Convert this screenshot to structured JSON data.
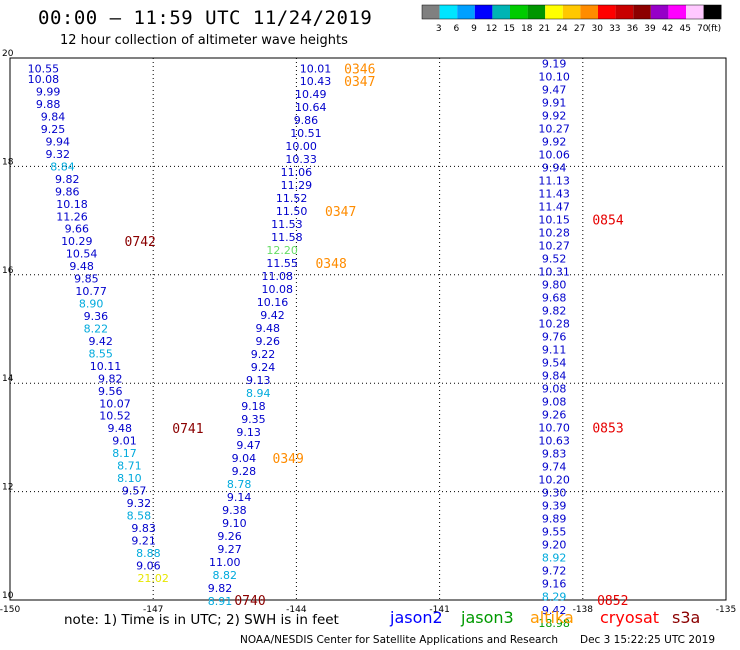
{
  "header": {
    "title": "00:00 – 11:59 UTC 11/24/2019",
    "subtitle": "12 hour collection of altimeter wave heights"
  },
  "color_scale": {
    "labels": [
      "3",
      "6",
      "9",
      "12",
      "15",
      "18",
      "21",
      "24",
      "27",
      "30",
      "33",
      "36",
      "39",
      "42",
      "45",
      "70",
      "(ft)"
    ],
    "colors": [
      "#808080",
      "#00e5ff",
      "#00a0ff",
      "#0000ff",
      "#00b4b4",
      "#00cc00",
      "#009600",
      "#ffff00",
      "#ffc800",
      "#ff8c00",
      "#ff0000",
      "#c80000",
      "#8c0000",
      "#9600c8",
      "#ff00ff",
      "#ffc8ff",
      "#000000"
    ]
  },
  "axes": {
    "lon_ticks": [
      "-150",
      "-147",
      "-144",
      "-141",
      "-138",
      "-135"
    ],
    "lat_ticks": [
      "20",
      "18",
      "16",
      "14",
      "12",
      "10"
    ]
  },
  "chart_data": {
    "type": "scatter",
    "xlabel": "",
    "ylabel": "",
    "xlim": [
      -150,
      -135
    ],
    "ylim": [
      10,
      20
    ],
    "grid": true,
    "track_values": [
      {
        "lon": -149.3,
        "lat": 19.81,
        "v": "10.55",
        "c": "#0000cc"
      },
      {
        "lon": -149.3,
        "lat": 19.61,
        "v": "10.08",
        "c": "#0000cc"
      },
      {
        "lon": -149.2,
        "lat": 19.38,
        "v": "9.99",
        "c": "#0000cc"
      },
      {
        "lon": -149.2,
        "lat": 19.15,
        "v": "9.88",
        "c": "#0000cc"
      },
      {
        "lon": -149.1,
        "lat": 18.92,
        "v": "9.84",
        "c": "#0000cc"
      },
      {
        "lon": -149.1,
        "lat": 18.69,
        "v": "9.25",
        "c": "#0000cc"
      },
      {
        "lon": -149.0,
        "lat": 18.46,
        "v": "9.94",
        "c": "#0000cc"
      },
      {
        "lon": -149.0,
        "lat": 18.23,
        "v": "9.32",
        "c": "#0000cc"
      },
      {
        "lon": -148.9,
        "lat": 18.0,
        "v": "8.84",
        "c": "#00aadd"
      },
      {
        "lon": -148.8,
        "lat": 17.77,
        "v": "9.82",
        "c": "#0000cc"
      },
      {
        "lon": -148.8,
        "lat": 17.54,
        "v": "9.86",
        "c": "#0000cc"
      },
      {
        "lon": -148.7,
        "lat": 17.31,
        "v": "10.18",
        "c": "#0000cc"
      },
      {
        "lon": -148.7,
        "lat": 17.08,
        "v": "11.26",
        "c": "#0000cc"
      },
      {
        "lon": -148.6,
        "lat": 16.85,
        "v": "9.66",
        "c": "#0000cc"
      },
      {
        "lon": -148.6,
        "lat": 16.62,
        "v": "10.29",
        "c": "#0000cc"
      },
      {
        "lon": -148.5,
        "lat": 16.39,
        "v": "10.54",
        "c": "#0000cc"
      },
      {
        "lon": -148.5,
        "lat": 16.16,
        "v": "9.48",
        "c": "#0000cc"
      },
      {
        "lon": -148.4,
        "lat": 15.93,
        "v": "9.85",
        "c": "#0000cc"
      },
      {
        "lon": -148.3,
        "lat": 15.7,
        "v": "10.77",
        "c": "#0000cc"
      },
      {
        "lon": -148.3,
        "lat": 15.47,
        "v": "8.90",
        "c": "#00aadd"
      },
      {
        "lon": -148.2,
        "lat": 15.24,
        "v": "9.36",
        "c": "#0000cc"
      },
      {
        "lon": -148.2,
        "lat": 15.01,
        "v": "8.22",
        "c": "#00aadd"
      },
      {
        "lon": -148.1,
        "lat": 14.78,
        "v": "9.42",
        "c": "#0000cc"
      },
      {
        "lon": -148.1,
        "lat": 14.55,
        "v": "8.55",
        "c": "#00aadd"
      },
      {
        "lon": -148.0,
        "lat": 14.32,
        "v": "10.11",
        "c": "#0000cc"
      },
      {
        "lon": -147.9,
        "lat": 14.09,
        "v": "9.82",
        "c": "#0000cc"
      },
      {
        "lon": -147.9,
        "lat": 13.86,
        "v": "9.56",
        "c": "#0000cc"
      },
      {
        "lon": -147.8,
        "lat": 13.63,
        "v": "10.07",
        "c": "#0000cc"
      },
      {
        "lon": -147.8,
        "lat": 13.4,
        "v": "10.52",
        "c": "#0000cc"
      },
      {
        "lon": -147.7,
        "lat": 13.17,
        "v": "9.48",
        "c": "#0000cc"
      },
      {
        "lon": -147.6,
        "lat": 12.94,
        "v": "9.01",
        "c": "#0000cc"
      },
      {
        "lon": -147.6,
        "lat": 12.71,
        "v": "8.17",
        "c": "#00aadd"
      },
      {
        "lon": -147.5,
        "lat": 12.48,
        "v": "8.71",
        "c": "#00aadd"
      },
      {
        "lon": -147.5,
        "lat": 12.25,
        "v": "8.10",
        "c": "#00aadd"
      },
      {
        "lon": -147.4,
        "lat": 12.02,
        "v": "9.57",
        "c": "#0000cc"
      },
      {
        "lon": -147.3,
        "lat": 11.79,
        "v": "9.32",
        "c": "#0000cc"
      },
      {
        "lon": -147.3,
        "lat": 11.56,
        "v": "8.58",
        "c": "#00aadd"
      },
      {
        "lon": -147.2,
        "lat": 11.33,
        "v": "9.83",
        "c": "#0000cc"
      },
      {
        "lon": -147.2,
        "lat": 11.1,
        "v": "9.21",
        "c": "#0000cc"
      },
      {
        "lon": -147.1,
        "lat": 10.87,
        "v": "8.88",
        "c": "#00aadd"
      },
      {
        "lon": -147.1,
        "lat": 10.64,
        "v": "9.06",
        "c": "#0000cc"
      },
      {
        "lon": -147.0,
        "lat": 10.41,
        "v": "21.02",
        "c": "#e6e600"
      },
      {
        "lon": -143.6,
        "lat": 19.81,
        "v": "10.01",
        "c": "#0000cc"
      },
      {
        "lon": -143.6,
        "lat": 19.58,
        "v": "10.43",
        "c": "#0000cc"
      },
      {
        "lon": -143.7,
        "lat": 19.34,
        "v": "10.49",
        "c": "#0000cc"
      },
      {
        "lon": -143.7,
        "lat": 19.1,
        "v": "10.64",
        "c": "#0000cc"
      },
      {
        "lon": -143.8,
        "lat": 18.86,
        "v": "9.86",
        "c": "#0000cc"
      },
      {
        "lon": -143.8,
        "lat": 18.62,
        "v": "10.51",
        "c": "#0000cc"
      },
      {
        "lon": -143.9,
        "lat": 18.38,
        "v": "10.00",
        "c": "#0000cc"
      },
      {
        "lon": -143.9,
        "lat": 18.14,
        "v": "10.33",
        "c": "#0000cc"
      },
      {
        "lon": -144.0,
        "lat": 17.9,
        "v": "11.06",
        "c": "#0000cc"
      },
      {
        "lon": -144.0,
        "lat": 17.66,
        "v": "11.29",
        "c": "#0000cc"
      },
      {
        "lon": -144.1,
        "lat": 17.42,
        "v": "11.52",
        "c": "#0000cc"
      },
      {
        "lon": -144.1,
        "lat": 17.18,
        "v": "11.50",
        "c": "#0000cc"
      },
      {
        "lon": -144.2,
        "lat": 16.94,
        "v": "11.53",
        "c": "#0000cc"
      },
      {
        "lon": -144.2,
        "lat": 16.7,
        "v": "11.58",
        "c": "#0000cc"
      },
      {
        "lon": -144.3,
        "lat": 16.46,
        "v": "12.20",
        "c": "#66dd66"
      },
      {
        "lon": -144.3,
        "lat": 16.22,
        "v": "11.55",
        "c": "#0000cc"
      },
      {
        "lon": -144.4,
        "lat": 15.98,
        "v": "11.08",
        "c": "#0000cc"
      },
      {
        "lon": -144.4,
        "lat": 15.74,
        "v": "10.08",
        "c": "#0000cc"
      },
      {
        "lon": -144.5,
        "lat": 15.5,
        "v": "10.16",
        "c": "#0000cc"
      },
      {
        "lon": -144.5,
        "lat": 15.26,
        "v": "9.42",
        "c": "#0000cc"
      },
      {
        "lon": -144.6,
        "lat": 15.02,
        "v": "9.48",
        "c": "#0000cc"
      },
      {
        "lon": -144.6,
        "lat": 14.78,
        "v": "9.26",
        "c": "#0000cc"
      },
      {
        "lon": -144.7,
        "lat": 14.54,
        "v": "9.22",
        "c": "#0000cc"
      },
      {
        "lon": -144.7,
        "lat": 14.3,
        "v": "9.24",
        "c": "#0000cc"
      },
      {
        "lon": -144.8,
        "lat": 14.06,
        "v": "9.13",
        "c": "#0000cc"
      },
      {
        "lon": -144.8,
        "lat": 13.82,
        "v": "8.94",
        "c": "#00aadd"
      },
      {
        "lon": -144.9,
        "lat": 13.58,
        "v": "9.18",
        "c": "#0000cc"
      },
      {
        "lon": -144.9,
        "lat": 13.34,
        "v": "9.35",
        "c": "#0000cc"
      },
      {
        "lon": -145.0,
        "lat": 13.1,
        "v": "9.13",
        "c": "#0000cc"
      },
      {
        "lon": -145.0,
        "lat": 12.86,
        "v": "9.47",
        "c": "#0000cc"
      },
      {
        "lon": -145.1,
        "lat": 12.62,
        "v": "9.04",
        "c": "#0000cc"
      },
      {
        "lon": -145.1,
        "lat": 12.38,
        "v": "9.28",
        "c": "#0000cc"
      },
      {
        "lon": -145.2,
        "lat": 12.14,
        "v": "8.78",
        "c": "#00aadd"
      },
      {
        "lon": -145.2,
        "lat": 11.9,
        "v": "9.14",
        "c": "#0000cc"
      },
      {
        "lon": -145.3,
        "lat": 11.66,
        "v": "9.38",
        "c": "#0000cc"
      },
      {
        "lon": -145.3,
        "lat": 11.42,
        "v": "9.10",
        "c": "#0000cc"
      },
      {
        "lon": -145.4,
        "lat": 11.18,
        "v": "9.26",
        "c": "#0000cc"
      },
      {
        "lon": -145.4,
        "lat": 10.94,
        "v": "9.27",
        "c": "#0000cc"
      },
      {
        "lon": -145.5,
        "lat": 10.7,
        "v": "11.00",
        "c": "#0000cc"
      },
      {
        "lon": -145.5,
        "lat": 10.46,
        "v": "8.82",
        "c": "#00aadd"
      },
      {
        "lon": -145.6,
        "lat": 10.22,
        "v": "9.82",
        "c": "#0000cc"
      },
      {
        "lon": -145.6,
        "lat": 9.98,
        "v": "8.91",
        "c": "#00aadd"
      },
      {
        "lon": -138.6,
        "lat": 19.9,
        "v": "9.19",
        "c": "#0000cc"
      },
      {
        "lon": -138.6,
        "lat": 19.66,
        "v": "10.10",
        "c": "#0000cc"
      },
      {
        "lon": -138.6,
        "lat": 19.42,
        "v": "9.47",
        "c": "#0000cc"
      },
      {
        "lon": -138.6,
        "lat": 19.18,
        "v": "9.91",
        "c": "#0000cc"
      },
      {
        "lon": -138.6,
        "lat": 18.94,
        "v": "9.92",
        "c": "#0000cc"
      },
      {
        "lon": -138.6,
        "lat": 18.7,
        "v": "10.27",
        "c": "#0000cc"
      },
      {
        "lon": -138.6,
        "lat": 18.46,
        "v": "9.92",
        "c": "#0000cc"
      },
      {
        "lon": -138.6,
        "lat": 18.22,
        "v": "10.06",
        "c": "#0000cc"
      },
      {
        "lon": -138.6,
        "lat": 17.98,
        "v": "9.94",
        "c": "#0000cc"
      },
      {
        "lon": -138.6,
        "lat": 17.74,
        "v": "11.13",
        "c": "#0000cc"
      },
      {
        "lon": -138.6,
        "lat": 17.5,
        "v": "11.43",
        "c": "#0000cc"
      },
      {
        "lon": -138.6,
        "lat": 17.26,
        "v": "11.47",
        "c": "#0000cc"
      },
      {
        "lon": -138.6,
        "lat": 17.02,
        "v": "10.15",
        "c": "#0000cc"
      },
      {
        "lon": -138.6,
        "lat": 16.78,
        "v": "10.28",
        "c": "#0000cc"
      },
      {
        "lon": -138.6,
        "lat": 16.54,
        "v": "10.27",
        "c": "#0000cc"
      },
      {
        "lon": -138.6,
        "lat": 16.3,
        "v": "9.52",
        "c": "#0000cc"
      },
      {
        "lon": -138.6,
        "lat": 16.06,
        "v": "10.31",
        "c": "#0000cc"
      },
      {
        "lon": -138.6,
        "lat": 15.82,
        "v": "9.80",
        "c": "#0000cc"
      },
      {
        "lon": -138.6,
        "lat": 15.58,
        "v": "9.68",
        "c": "#0000cc"
      },
      {
        "lon": -138.6,
        "lat": 15.34,
        "v": "9.82",
        "c": "#0000cc"
      },
      {
        "lon": -138.6,
        "lat": 15.1,
        "v": "10.28",
        "c": "#0000cc"
      },
      {
        "lon": -138.6,
        "lat": 14.86,
        "v": "9.76",
        "c": "#0000cc"
      },
      {
        "lon": -138.6,
        "lat": 14.62,
        "v": "9.11",
        "c": "#0000cc"
      },
      {
        "lon": -138.6,
        "lat": 14.38,
        "v": "9.54",
        "c": "#0000cc"
      },
      {
        "lon": -138.6,
        "lat": 14.14,
        "v": "9.84",
        "c": "#0000cc"
      },
      {
        "lon": -138.6,
        "lat": 13.9,
        "v": "9.08",
        "c": "#0000cc"
      },
      {
        "lon": -138.6,
        "lat": 13.66,
        "v": "9.08",
        "c": "#0000cc"
      },
      {
        "lon": -138.6,
        "lat": 13.42,
        "v": "9.26",
        "c": "#0000cc"
      },
      {
        "lon": -138.6,
        "lat": 13.18,
        "v": "10.70",
        "c": "#0000cc"
      },
      {
        "lon": -138.6,
        "lat": 12.94,
        "v": "10.63",
        "c": "#0000cc"
      },
      {
        "lon": -138.6,
        "lat": 12.7,
        "v": "9.83",
        "c": "#0000cc"
      },
      {
        "lon": -138.6,
        "lat": 12.46,
        "v": "9.74",
        "c": "#0000cc"
      },
      {
        "lon": -138.6,
        "lat": 12.22,
        "v": "10.20",
        "c": "#0000cc"
      },
      {
        "lon": -138.6,
        "lat": 11.98,
        "v": "9.30",
        "c": "#0000cc"
      },
      {
        "lon": -138.6,
        "lat": 11.74,
        "v": "9.39",
        "c": "#0000cc"
      },
      {
        "lon": -138.6,
        "lat": 11.5,
        "v": "9.89",
        "c": "#0000cc"
      },
      {
        "lon": -138.6,
        "lat": 11.26,
        "v": "9.55",
        "c": "#0000cc"
      },
      {
        "lon": -138.6,
        "lat": 11.02,
        "v": "9.20",
        "c": "#0000cc"
      },
      {
        "lon": -138.6,
        "lat": 10.78,
        "v": "8.92",
        "c": "#00aadd"
      },
      {
        "lon": -138.6,
        "lat": 10.54,
        "v": "9.72",
        "c": "#0000cc"
      },
      {
        "lon": -138.6,
        "lat": 10.3,
        "v": "9.16",
        "c": "#0000cc"
      },
      {
        "lon": -138.6,
        "lat": 10.06,
        "v": "8.29",
        "c": "#00aadd"
      },
      {
        "lon": -138.6,
        "lat": 9.82,
        "v": "9.42",
        "c": "#0000cc"
      },
      {
        "lon": -138.6,
        "lat": 9.58,
        "v": "18.98",
        "c": "#009900"
      }
    ],
    "time_labels": [
      {
        "lon": -147.6,
        "lat": 16.62,
        "t": "0742",
        "c": "#8b0000"
      },
      {
        "lon": -146.6,
        "lat": 13.17,
        "t": "0741",
        "c": "#8b0000"
      },
      {
        "lon": -145.3,
        "lat": 10.0,
        "t": "0740",
        "c": "#8b0000"
      },
      {
        "lon": -143.0,
        "lat": 19.81,
        "t": "0346",
        "c": "#ff8c00"
      },
      {
        "lon": -143.0,
        "lat": 19.58,
        "t": "0347",
        "c": "#ff8c00"
      },
      {
        "lon": -143.4,
        "lat": 17.18,
        "t": "0347",
        "c": "#ff8c00"
      },
      {
        "lon": -143.6,
        "lat": 16.22,
        "t": "0348",
        "c": "#ff8c00"
      },
      {
        "lon": -144.5,
        "lat": 12.62,
        "t": "0349",
        "c": "#ff8c00"
      },
      {
        "lon": -137.8,
        "lat": 17.02,
        "t": "0854",
        "c": "#e60000"
      },
      {
        "lon": -137.8,
        "lat": 13.18,
        "t": "0853",
        "c": "#e60000"
      },
      {
        "lon": -137.7,
        "lat": 10.0,
        "t": "0852",
        "c": "#e60000"
      }
    ]
  },
  "footer": {
    "note": "note:  1) Time is in UTC;  2) SWH is in feet",
    "legend": [
      {
        "label": "jason2",
        "color": "#0000ff"
      },
      {
        "label": "jason3",
        "color": "#009900"
      },
      {
        "label": "altika",
        "color": "#ff9900"
      },
      {
        "label": "cryosat",
        "color": "#ff0000"
      },
      {
        "label": "s3a",
        "color": "#8b0000"
      }
    ],
    "credit": "NOAA/NESDIS Center for Satellite Applications and Research",
    "timestamp": "Dec  3 15:22:25 UTC 2019"
  }
}
